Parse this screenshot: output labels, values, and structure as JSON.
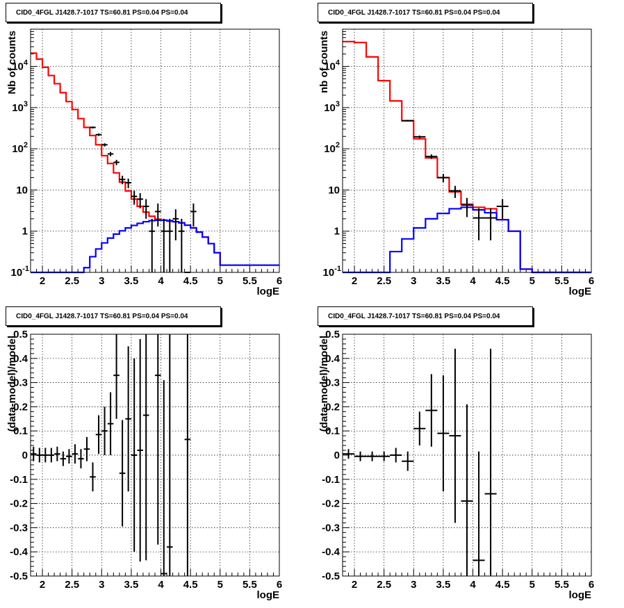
{
  "chart_data": [
    {
      "type": "line",
      "title": "CID0_4FGL J1428.7-1017 TS=60.81 PS=0.04 PS=0.04",
      "xlabel": "logE",
      "ylabel": "Nb of counts",
      "xlim": [
        1.8,
        6.0
      ],
      "ylim": [
        0.1,
        80000
      ],
      "yscale": "log",
      "grid": true,
      "xticks": [
        "2",
        "2.5",
        "3",
        "3.5",
        "4",
        "4.5",
        "5",
        "5.5",
        "6"
      ],
      "yticks": [
        "10^-1",
        "1",
        "10",
        "10^2",
        "10^3",
        "10^4"
      ],
      "step_width": 0.1,
      "series": [
        {
          "color": "#ff0000",
          "style": "step",
          "x": [
            1.85,
            1.95,
            2.05,
            2.15,
            2.25,
            2.35,
            2.45,
            2.55,
            2.65,
            2.75,
            2.85,
            2.95,
            3.05,
            3.15,
            3.25,
            3.35,
            3.45,
            3.55,
            3.65,
            3.75,
            3.85,
            3.95,
            4.05,
            4.15,
            4.25,
            4.35,
            4.45,
            4.55,
            4.65,
            4.75,
            4.85,
            4.95,
            5.05
          ],
          "y": [
            21000,
            15000,
            9500,
            6000,
            3800,
            2300,
            1400,
            900,
            540,
            330,
            210,
            125,
            68,
            44,
            26,
            15.5,
            9.5,
            6.0,
            4.0,
            2.9,
            2.3,
            1.95,
            1.85,
            1.75,
            1.7,
            1.6,
            1.4,
            1.2,
            0.95,
            0.72,
            0.5,
            0.3,
            0.15
          ]
        },
        {
          "color": "#0000ff",
          "style": "step",
          "x": [
            1.85,
            1.95,
            2.05,
            2.15,
            2.25,
            2.35,
            2.45,
            2.55,
            2.65,
            2.75,
            2.85,
            2.95,
            3.05,
            3.15,
            3.25,
            3.35,
            3.45,
            3.55,
            3.65,
            3.75,
            3.85,
            3.95,
            4.05,
            4.15,
            4.25,
            4.35,
            4.45,
            4.55,
            4.65,
            4.75,
            4.85,
            4.95,
            5.05
          ],
          "y": [
            0.1,
            0.1,
            0.1,
            0.1,
            0.1,
            0.1,
            0.1,
            0.1,
            0.1,
            0.13,
            0.24,
            0.37,
            0.52,
            0.68,
            0.85,
            1.02,
            1.2,
            1.38,
            1.55,
            1.7,
            1.8,
            1.85,
            1.85,
            1.8,
            1.7,
            1.6,
            1.4,
            1.2,
            0.95,
            0.72,
            0.5,
            0.3,
            0.15
          ]
        },
        {
          "color": "#000000",
          "style": "errorbar",
          "x": [
            2.85,
            2.95,
            3.05,
            3.15,
            3.25,
            3.35,
            3.45,
            3.55,
            3.65,
            3.75,
            3.85,
            3.95,
            4.05,
            4.15,
            4.25,
            4.35,
            4.45,
            4.55
          ],
          "y": [
            330,
            220,
            125,
            75,
            47,
            18,
            15,
            7,
            6,
            4,
            1,
            3,
            1,
            1,
            2,
            1,
            0.1,
            3
          ],
          "yerr": [
            18,
            15,
            11,
            8.7,
            6.9,
            4.2,
            3.9,
            2.6,
            2.4,
            2.0,
            1.0,
            1.7,
            1.0,
            1.0,
            1.4,
            1.0,
            0,
            1.7
          ]
        }
      ]
    },
    {
      "type": "line",
      "title": "CID0_4FGL J1428.7-1017 TS=60.81 PS=0.04 PS=0.04",
      "xlabel": "logE",
      "ylabel": "nb of counts",
      "xlim": [
        1.8,
        6.0
      ],
      "ylim": [
        0.1,
        80000
      ],
      "yscale": "log",
      "grid": true,
      "xticks": [
        "2",
        "2.5",
        "3",
        "3.5",
        "4",
        "4.5",
        "5",
        "5.5",
        "6"
      ],
      "yticks": [
        "10^-1",
        "1",
        "10",
        "10^2",
        "10^3",
        "10^4"
      ],
      "step_width": 0.2,
      "series": [
        {
          "color": "#ff0000",
          "style": "step",
          "x": [
            1.9,
            2.1,
            2.3,
            2.5,
            2.7,
            2.9,
            3.1,
            3.3,
            3.5,
            3.7,
            3.9,
            4.1,
            4.3,
            4.5,
            4.7,
            4.9,
            5.1
          ],
          "y": [
            40000,
            38000,
            17000,
            4500,
            1450,
            480,
            175,
            60,
            20,
            9,
            4.5,
            3.8,
            3.5,
            1.9,
            1.0,
            0.12,
            0.1
          ]
        },
        {
          "color": "#0000ff",
          "style": "step",
          "x": [
            1.9,
            2.1,
            2.3,
            2.5,
            2.7,
            2.9,
            3.1,
            3.3,
            3.5,
            3.7,
            3.9,
            4.1,
            4.3,
            4.5,
            4.7,
            4.9,
            5.1
          ],
          "y": [
            0.1,
            0.1,
            0.1,
            0.1,
            0.32,
            0.65,
            1.2,
            2.0,
            2.7,
            3.5,
            3.8,
            3.3,
            2.8,
            1.9,
            1.0,
            0.12,
            0.1
          ]
        },
        {
          "color": "#000000",
          "style": "errorbar",
          "x": [
            2.9,
            3.1,
            3.3,
            3.5,
            3.7,
            3.9,
            4.1,
            4.3,
            4.5
          ],
          "y": [
            480,
            195,
            65,
            20,
            9.5,
            4.3,
            2.1,
            2.1,
            4.0
          ],
          "yerr": [
            22,
            14,
            8.1,
            4.5,
            3.1,
            2.1,
            1.5,
            1.5,
            2.0
          ]
        }
      ]
    },
    {
      "type": "scatter",
      "title": "CID0_4FGL J1428.7-1017 TS=60.81 PS=0.04 PS=0.04",
      "xlabel": "logE",
      "ylabel": "(data-model)/model",
      "xlim": [
        1.8,
        6.0
      ],
      "ylim": [
        -0.5,
        0.5
      ],
      "grid": true,
      "xticks": [
        "2",
        "2.5",
        "3",
        "3.5",
        "4",
        "4.5",
        "5",
        "5.5",
        "6"
      ],
      "yticks": [
        "-0.5",
        "-0.4",
        "-0.3",
        "-0.2",
        "-0.1",
        "0",
        "0.1",
        "0.2",
        "0.3",
        "0.4",
        "0.5"
      ],
      "step_width": 0.1,
      "series": [
        {
          "color": "#000000",
          "style": "errorbar",
          "x": [
            1.85,
            1.95,
            2.05,
            2.15,
            2.25,
            2.35,
            2.45,
            2.55,
            2.65,
            2.75,
            2.85,
            2.95,
            3.05,
            3.15,
            3.25,
            3.35,
            3.45,
            3.55,
            3.65,
            3.75,
            3.85,
            3.95,
            4.05,
            4.15,
            4.45
          ],
          "y": [
            0.005,
            0.0,
            0.0,
            0.0,
            0.005,
            -0.015,
            -0.005,
            0.005,
            -0.015,
            0.025,
            -0.09,
            0.085,
            0.1,
            0.13,
            0.33,
            -0.075,
            0.15,
            0.0,
            0.02,
            0.165,
            null,
            0.33,
            -0.49,
            -0.38,
            0.065
          ],
          "yerr": [
            0.03,
            0.03,
            0.03,
            0.03,
            0.03,
            0.03,
            0.03,
            0.04,
            0.04,
            0.05,
            0.06,
            0.08,
            0.1,
            0.13,
            0.18,
            0.22,
            0.3,
            0.4,
            0.46,
            0.6,
            null,
            0.7,
            0.8,
            0.9,
            1.0
          ]
        }
      ]
    },
    {
      "type": "scatter",
      "title": "CID0_4FGL J1428.7-1017 TS=60.81 PS=0.04 PS=0.04",
      "xlabel": "logE",
      "ylabel": "(data-model)/model",
      "xlim": [
        1.8,
        6.0
      ],
      "ylim": [
        -0.5,
        0.5
      ],
      "grid": true,
      "xticks": [
        "2",
        "2.5",
        "3",
        "3.5",
        "4",
        "4.5",
        "5",
        "5.5",
        "6"
      ],
      "yticks": [
        "-0.5",
        "-0.4",
        "-0.3",
        "-0.2",
        "-0.1",
        "0",
        "0.1",
        "0.2",
        "0.3",
        "0.4",
        "0.5"
      ],
      "step_width": 0.2,
      "series": [
        {
          "color": "#000000",
          "style": "errorbar",
          "x": [
            1.9,
            2.1,
            2.3,
            2.5,
            2.7,
            2.9,
            3.1,
            3.3,
            3.5,
            3.7,
            3.9,
            4.1,
            4.3
          ],
          "y": [
            0.005,
            -0.005,
            -0.005,
            -0.005,
            0.0,
            -0.025,
            0.11,
            0.185,
            0.09,
            0.08,
            -0.19,
            -0.435,
            -0.16
          ],
          "yerr": [
            0.02,
            0.02,
            0.02,
            0.02,
            0.03,
            0.04,
            0.07,
            0.15,
            0.24,
            0.36,
            0.4,
            0.45,
            0.6
          ]
        }
      ]
    }
  ]
}
